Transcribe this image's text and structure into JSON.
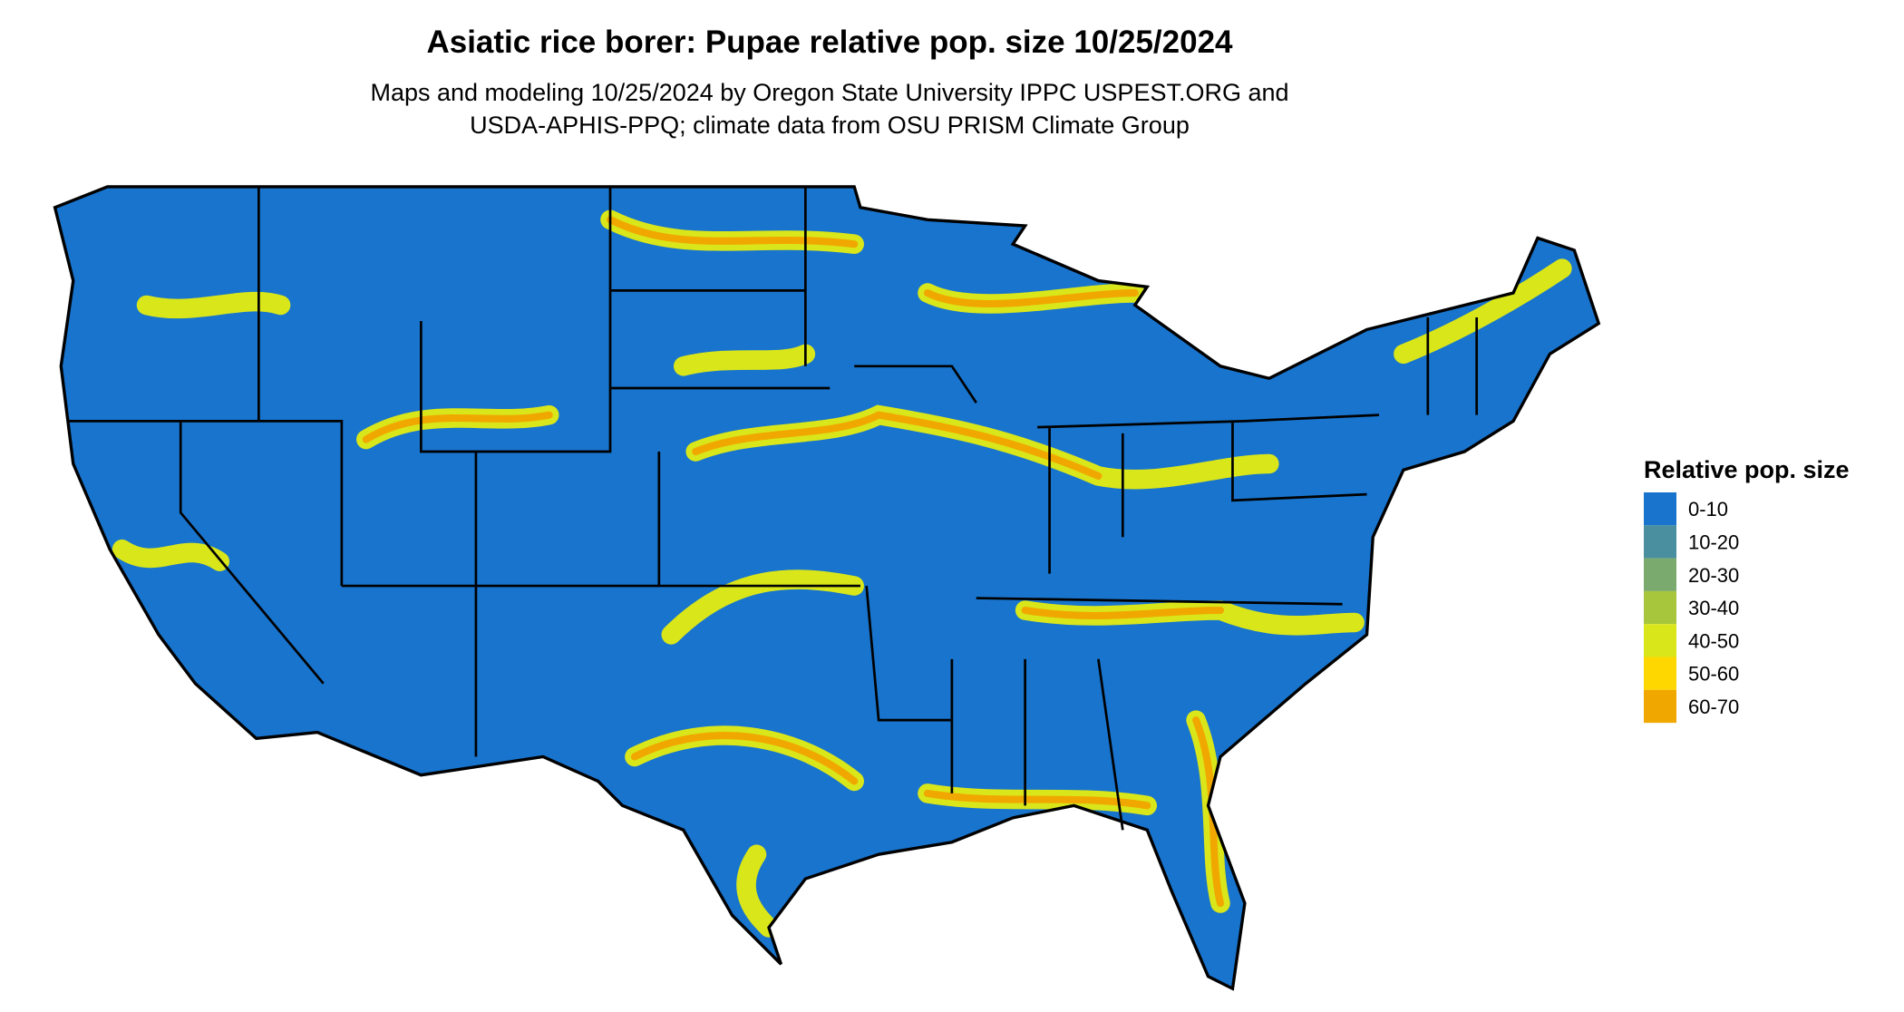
{
  "title": "Asiatic rice borer: Pupae relative pop. size 10/25/2024",
  "subtitle": [
    "Maps and modeling 10/25/2024 by Oregon State University IPPC USPEST.ORG and",
    "USDA-APHIS-PPQ; climate data from OSU PRISM Climate Group"
  ],
  "legend": {
    "title": "Relative pop. size",
    "items": [
      {
        "label": "0-10",
        "color": "#1874cd"
      },
      {
        "label": "10-20",
        "color": "#4a8fa0"
      },
      {
        "label": "20-30",
        "color": "#7baa6e"
      },
      {
        "label": "30-40",
        "color": "#a8c63c"
      },
      {
        "label": "40-50",
        "color": "#d9e61a"
      },
      {
        "label": "50-60",
        "color": "#ffd700"
      },
      {
        "label": "60-70",
        "color": "#f0a800"
      }
    ]
  }
}
